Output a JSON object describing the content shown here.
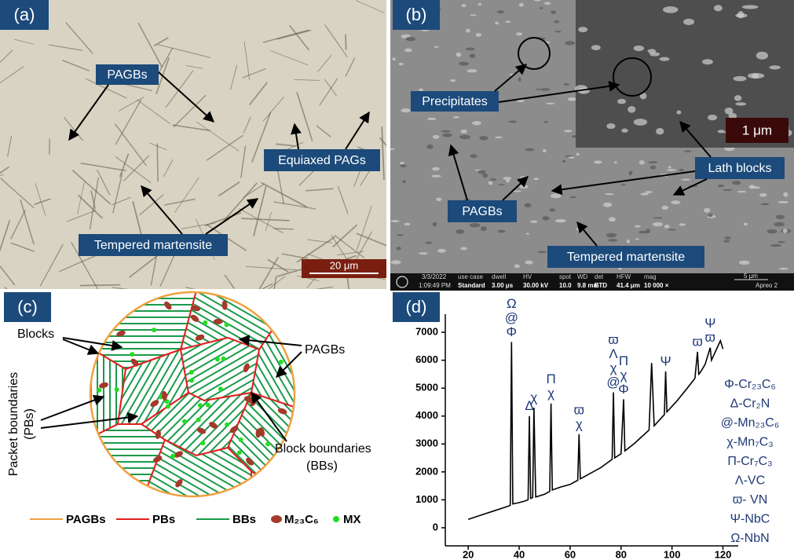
{
  "panels": {
    "a": {
      "label": "(a)",
      "annotations": [
        "PAGBs",
        "Equiaxed PAGs",
        "Tempered martensite"
      ],
      "scale_bar": "20 μm"
    },
    "b": {
      "label": "(b)",
      "annotations": [
        "Precipitates",
        "Lath blocks",
        "PAGBs",
        "Tempered martensite"
      ],
      "inset_scale_bar": "1 μm",
      "info_bar": {
        "date": "3/3/2022",
        "time": "1:09:49 PM",
        "fields": [
          {
            "name": "use case",
            "value": "Standard"
          },
          {
            "name": "dwell",
            "value": "3.00 μs"
          },
          {
            "name": "HV",
            "value": "30.00 kV"
          },
          {
            "name": "spot",
            "value": "10.0"
          },
          {
            "name": "WD",
            "value": "9.8 mm"
          },
          {
            "name": "det",
            "value": "ETD"
          },
          {
            "name": "HFW",
            "value": "41.4 μm"
          },
          {
            "name": "mag",
            "value": "10 000 ×"
          }
        ],
        "scale": "5 μm",
        "instrument": "Apreo 2"
      }
    },
    "c": {
      "label": "(c)",
      "annotations": [
        "Blocks",
        "PAGBs",
        "Packet boundaries",
        "(PBs)",
        "Block boundaries",
        "(BBs)"
      ],
      "legend": [
        "PAGBs",
        "PBs",
        "BBs",
        "M₂₃C₆",
        "MX"
      ]
    },
    "d": {
      "label": "(d)",
      "phases": [
        "Φ-Cr₂₃C₆",
        "Δ-Cr₂N",
        "@-Mn₂₃C₆",
        "χ-Mn₇C₃",
        "Π-Cr₇C₃",
        "Λ-VC",
        "ϖ- VN",
        "Ψ-NbC",
        "Ω-NbN"
      ]
    }
  },
  "chart_data": {
    "type": "line",
    "color": "#000000",
    "x": [
      20,
      25,
      30,
      35,
      36.5,
      37,
      37.5,
      40,
      42,
      43.5,
      44,
      44.5,
      45.3,
      45.8,
      46.5,
      50,
      52,
      52.5,
      53,
      56,
      60,
      63,
      63.5,
      64,
      68,
      72,
      75,
      76.5,
      77,
      77.5,
      80,
      81,
      81.5,
      85,
      88,
      91,
      92,
      93,
      95,
      97,
      97.5,
      98,
      102,
      106,
      109,
      110,
      110.5,
      111,
      113,
      115,
      115.5,
      116,
      118,
      119,
      120
    ],
    "values": [
      300,
      450,
      600,
      750,
      800,
      6650,
      850,
      900,
      950,
      1000,
      4000,
      1050,
      1080,
      4300,
      1100,
      1200,
      1300,
      4450,
      1350,
      1450,
      1550,
      1700,
      3350,
      1750,
      1950,
      2150,
      2350,
      2450,
      4850,
      2500,
      2650,
      4600,
      2750,
      3000,
      3250,
      3500,
      5900,
      3650,
      3850,
      4050,
      5600,
      4150,
      4550,
      5000,
      5350,
      6300,
      5500,
      5550,
      5850,
      6450,
      6000,
      6100,
      6500,
      6700,
      6400
    ],
    "xlim": [
      11,
      126
    ],
    "ylim": [
      -650,
      7650
    ],
    "xticks": [
      20,
      40,
      60,
      80,
      100,
      120
    ],
    "yticks": [
      0,
      1000,
      2000,
      3000,
      4000,
      5000,
      6000,
      7000
    ],
    "peak_labels": [
      [
        "Ω",
        "@",
        "Φ"
      ],
      [
        "Δ"
      ],
      [
        "χ"
      ],
      [
        "Π",
        "χ"
      ],
      [
        "ϖ",
        "χ"
      ],
      [
        "ϖ",
        "Λ",
        "χ",
        "@"
      ],
      [
        "Π",
        "χ",
        "Φ"
      ],
      [
        "Ψ"
      ],
      [
        "ϖ"
      ],
      [
        "Ψ",
        "ϖ"
      ]
    ]
  }
}
